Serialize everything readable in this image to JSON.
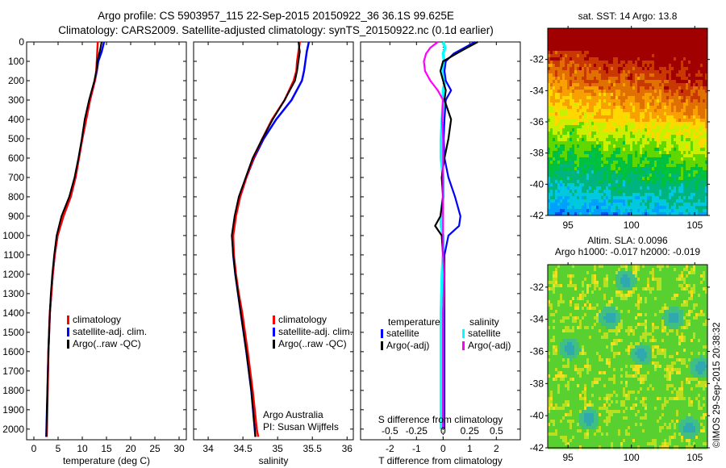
{
  "title": {
    "line1": "Argo profile: CS 5903957_115 22-Sep-2015 20150922_36 36.1S 99.625E",
    "line2": "Climatology: CARS2009. Satellite-adjusted climatology: synTS_20150922.nc (0.1d earlier)"
  },
  "colors": {
    "climatology": "#ff0000",
    "satellite": "#0000ff",
    "argo": "#000000",
    "sal_satellite": "#00ffff",
    "sal_argo": "#ff00ff"
  },
  "chart_data": [
    {
      "type": "line",
      "xlabel": "temperature (deg C)",
      "ylabel": "",
      "xlim": [
        -1.5,
        31.5
      ],
      "ylim": [
        2055,
        0
      ],
      "xticks": [
        0,
        5,
        10,
        15,
        20,
        25,
        30
      ],
      "yticks": [
        0,
        100,
        200,
        300,
        400,
        500,
        600,
        700,
        800,
        900,
        1000,
        1100,
        1200,
        1300,
        1400,
        1500,
        1600,
        1700,
        1800,
        1900,
        2000
      ],
      "legend": [
        "climatology",
        "satellite-adj. clim.",
        "Argo(..raw -QC)"
      ],
      "depth": [
        0,
        50,
        100,
        150,
        200,
        300,
        400,
        500,
        600,
        700,
        800,
        900,
        1000,
        1100,
        1200,
        1300,
        1400,
        1600,
        1800,
        2000,
        2040
      ],
      "series": [
        {
          "name": "climatology",
          "values": [
            13.2,
            13.1,
            13.0,
            12.9,
            12.6,
            11.6,
            10.8,
            10.0,
            9.3,
            8.6,
            7.6,
            6.1,
            4.9,
            4.3,
            3.9,
            3.6,
            3.3,
            3.0,
            2.85,
            2.7,
            2.65
          ]
        },
        {
          "name": "satellite-adj. clim.",
          "values": [
            14.5,
            14.0,
            13.3,
            13.0,
            12.6,
            11.6,
            10.8,
            10.0,
            9.3,
            8.6,
            7.6,
            6.1,
            4.9,
            4.3,
            3.9,
            3.6,
            3.3,
            3.0,
            2.8,
            2.6,
            2.55
          ]
        },
        {
          "name": "Argo(..raw -QC)",
          "values": [
            14.0,
            13.6,
            13.1,
            12.9,
            12.5,
            11.4,
            10.5,
            9.9,
            9.2,
            8.4,
            7.3,
            5.7,
            4.7,
            4.2,
            3.8,
            3.5,
            3.3,
            3.0,
            2.8,
            2.6,
            2.6
          ]
        }
      ]
    },
    {
      "type": "line",
      "xlabel": "salinity",
      "xlim": [
        33.79,
        36.09
      ],
      "ylim": [
        2055,
        0
      ],
      "xticks": [
        34,
        34.5,
        35,
        35.5,
        36
      ],
      "legend": [
        "climatology",
        "satellite-adj. clim.",
        "Argo(..raw -QC)"
      ],
      "annotation": [
        "Argo Australia",
        "PI: Susan Wijffels"
      ],
      "depth": [
        0,
        50,
        100,
        150,
        200,
        300,
        400,
        500,
        600,
        700,
        800,
        900,
        1000,
        1100,
        1200,
        1300,
        1400,
        1600,
        1800,
        2000,
        2040
      ],
      "series": [
        {
          "name": "climatology",
          "values": [
            35.32,
            35.3,
            35.28,
            35.27,
            35.23,
            35.1,
            34.92,
            34.78,
            34.65,
            34.55,
            34.46,
            34.4,
            34.36,
            34.37,
            34.4,
            34.44,
            34.49,
            34.57,
            34.64,
            34.7,
            34.72
          ]
        },
        {
          "name": "satellite-adj. clim.",
          "values": [
            35.45,
            35.42,
            35.4,
            35.38,
            35.35,
            35.2,
            34.98,
            34.8,
            34.66,
            34.55,
            34.46,
            34.39,
            34.35,
            34.36,
            34.39,
            34.43,
            34.47,
            34.55,
            34.62,
            34.67,
            34.68
          ]
        },
        {
          "name": "Argo(..raw -QC)",
          "values": [
            35.3,
            35.32,
            35.3,
            35.28,
            35.25,
            35.1,
            34.93,
            34.78,
            34.64,
            34.54,
            34.44,
            34.38,
            34.34,
            34.36,
            34.39,
            34.43,
            34.47,
            34.55,
            34.62,
            34.67,
            34.68
          ]
        }
      ]
    },
    {
      "type": "line",
      "xlabel": "T difference from climatology",
      "xlabel2": "S difference from climatology",
      "xlim": [
        -3.1,
        2.9
      ],
      "ylim": [
        2055,
        0
      ],
      "xticks": [
        -2,
        -1,
        0,
        1,
        2
      ],
      "xticks2": [
        -0.5,
        -0.25,
        0,
        0.25,
        0.5
      ],
      "xticks2_labels": [
        "-0.5",
        "-0.25",
        "0",
        "0.25",
        "0.5"
      ],
      "legend_headers": [
        "temperature",
        "salinity"
      ],
      "legend": [
        "satellite",
        "Argo(-adj)",
        "satellite",
        "Argo(-adj)"
      ],
      "depth": [
        0,
        30,
        60,
        100,
        150,
        200,
        250,
        300,
        400,
        500,
        600,
        700,
        800,
        900,
        950,
        1000,
        1100,
        1200,
        1400,
        1600,
        1800,
        2000
      ],
      "series": [
        {
          "name": "T satellite",
          "units": "degC",
          "values": [
            1.2,
            0.8,
            0.4,
            0.1,
            0.05,
            0.1,
            0.3,
            0.1,
            0.05,
            0.02,
            0.05,
            0.2,
            0.45,
            0.65,
            0.6,
            0.2,
            0.05,
            0.05,
            0.05,
            0.05,
            0.05,
            0.05
          ]
        },
        {
          "name": "T Argo(-adj)",
          "units": "degC",
          "values": [
            1.3,
            0.9,
            0.5,
            0.0,
            -0.1,
            0.0,
            0.1,
            0.05,
            0.3,
            0.2,
            0.05,
            -0.05,
            0.0,
            -0.1,
            -0.3,
            -0.05,
            0.0,
            0.05,
            0.0,
            0.0,
            0.0,
            0.0
          ]
        },
        {
          "name": "S satellite",
          "units": "psu",
          "values": [
            0.0,
            0.02,
            0.0,
            0.01,
            0.0,
            0.02,
            0.0,
            0.0,
            -0.01,
            -0.02,
            -0.02,
            0.0,
            0.0,
            -0.02,
            -0.02,
            0.0,
            0.0,
            -0.01,
            -0.02,
            -0.02,
            -0.02,
            -0.02
          ]
        },
        {
          "name": "S Argo(-adj)",
          "units": "psu",
          "values": [
            -0.05,
            -0.12,
            -0.16,
            -0.18,
            -0.17,
            -0.12,
            -0.05,
            0.0,
            -0.01,
            0.0,
            0.0,
            0.0,
            0.0,
            0.0,
            0.0,
            0.0,
            0.0,
            0.01,
            0.0,
            0.0,
            0.0,
            0.0
          ]
        }
      ]
    },
    {
      "type": "heatmap",
      "title": "sat. SST: 14 Argo: 13.8",
      "xlim": [
        93.4,
        106.0
      ],
      "ylim": [
        -42,
        -30
      ],
      "xticks": [
        95,
        100,
        105
      ],
      "yticks": [
        -32,
        -34,
        -36,
        -38,
        -40,
        -42
      ]
    },
    {
      "type": "heatmap",
      "title": "Altim. SLA: 0.0096",
      "subtitle": "Argo h1000: -0.017 h2000: -0.019",
      "xlim": [
        93.4,
        106.0
      ],
      "ylim": [
        -42,
        -30.6
      ],
      "xticks": [
        95,
        100,
        105
      ],
      "yticks": [
        -32,
        -34,
        -36,
        -38,
        -40,
        -42
      ]
    }
  ],
  "credit": "©IMOS 29-Sep-2015 20:38:32"
}
